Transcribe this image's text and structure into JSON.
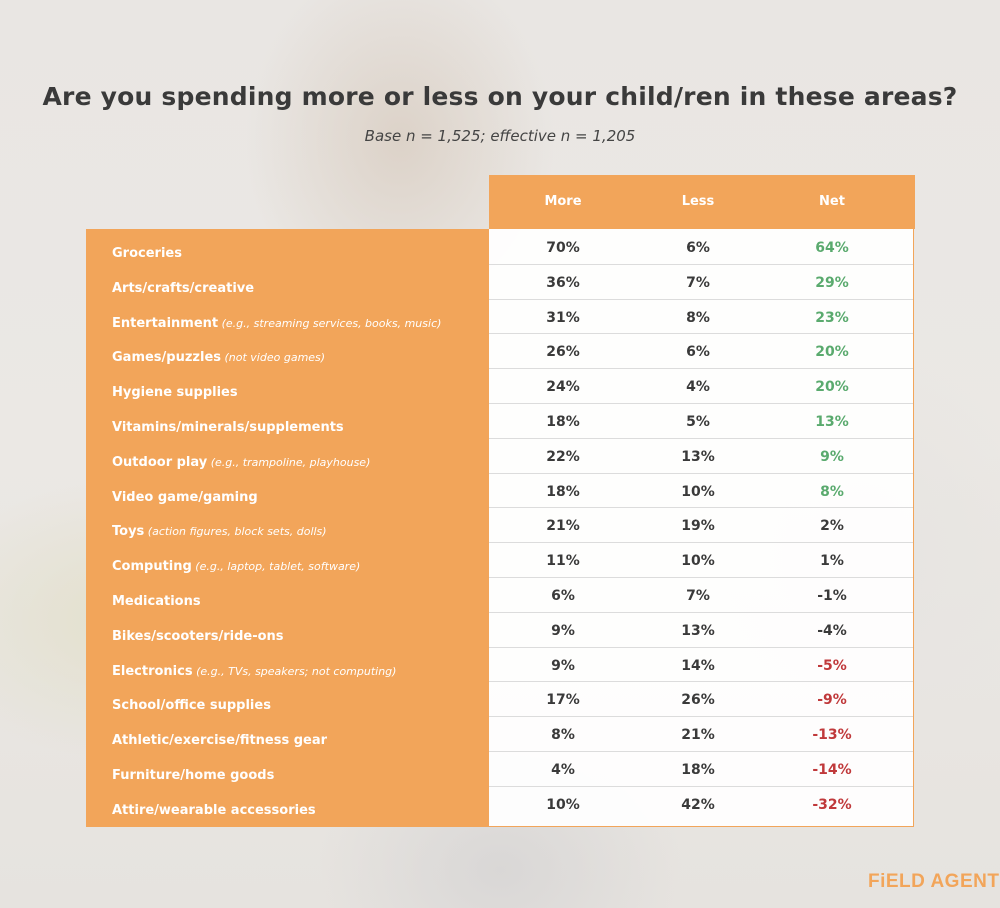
{
  "title": "Are you spending more or less on your child/ren in these areas?",
  "subtitle": "Base n = 1,525; effective n = 1,205",
  "logo_text": "FiELD AGENT",
  "colors": {
    "accent": "#f2a55a",
    "positive": "#5aaa6e",
    "negative": "#c0393b",
    "neutral": "#3a3a3a"
  },
  "chart_data": {
    "type": "table",
    "title": "Are you spending more or less on your child/ren in these areas?",
    "columns": [
      "More",
      "Less",
      "Net"
    ],
    "rows": [
      {
        "label": "Groceries",
        "note": "",
        "more": "70%",
        "less": "6%",
        "net": "64%",
        "net_value": 64
      },
      {
        "label": "Arts/crafts/creative",
        "note": "",
        "more": "36%",
        "less": "7%",
        "net": "29%",
        "net_value": 29
      },
      {
        "label": "Entertainment",
        "note": "(e.g., streaming services, books, music)",
        "more": "31%",
        "less": "8%",
        "net": "23%",
        "net_value": 23
      },
      {
        "label": "Games/puzzles",
        "note": "(not video games)",
        "more": "26%",
        "less": "6%",
        "net": "20%",
        "net_value": 20
      },
      {
        "label": "Hygiene supplies",
        "note": "",
        "more": "24%",
        "less": "4%",
        "net": "20%",
        "net_value": 20
      },
      {
        "label": "Vitamins/minerals/supplements",
        "note": "",
        "more": "18%",
        "less": "5%",
        "net": "13%",
        "net_value": 13
      },
      {
        "label": "Outdoor play",
        "note": "(e.g., trampoline, playhouse)",
        "more": "22%",
        "less": "13%",
        "net": "9%",
        "net_value": 9
      },
      {
        "label": "Video game/gaming",
        "note": "",
        "more": "18%",
        "less": "10%",
        "net": "8%",
        "net_value": 8
      },
      {
        "label": "Toys",
        "note": "(action figures, block sets, dolls)",
        "more": "21%",
        "less": "19%",
        "net": "2%",
        "net_value": 2
      },
      {
        "label": "Computing",
        "note": "(e.g., laptop, tablet, software)",
        "more": "11%",
        "less": "10%",
        "net": "1%",
        "net_value": 1
      },
      {
        "label": "Medications",
        "note": "",
        "more": "6%",
        "less": "7%",
        "net": "-1%",
        "net_value": -1
      },
      {
        "label": "Bikes/scooters/ride-ons",
        "note": "",
        "more": "9%",
        "less": "13%",
        "net": "-4%",
        "net_value": -4
      },
      {
        "label": "Electronics",
        "note": "(e.g., TVs, speakers; not computing)",
        "more": "9%",
        "less": "14%",
        "net": "-5%",
        "net_value": -5
      },
      {
        "label": "School/office supplies",
        "note": "",
        "more": "17%",
        "less": "26%",
        "net": "-9%",
        "net_value": -9
      },
      {
        "label": "Athletic/exercise/fitness gear",
        "note": "",
        "more": "8%",
        "less": "21%",
        "net": "-13%",
        "net_value": -13
      },
      {
        "label": "Furniture/home goods",
        "note": "",
        "more": "4%",
        "less": "18%",
        "net": "-14%",
        "net_value": -14
      },
      {
        "label": "Attire/wearable accessories",
        "note": "",
        "more": "10%",
        "less": "42%",
        "net": "-32%",
        "net_value": -32
      }
    ]
  }
}
